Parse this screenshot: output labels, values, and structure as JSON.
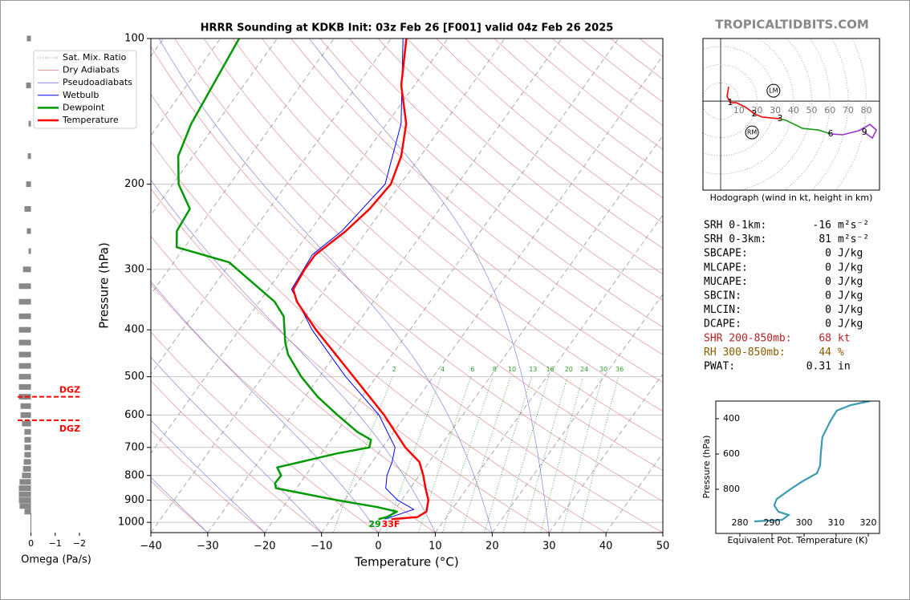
{
  "watermark": "TROPICALTIDBITS.COM",
  "chart_data": [
    {
      "type": "skewt",
      "title": "HRRR Sounding at KDKB Init: 03z Feb 26 [F001] valid 04z Feb 26 2025",
      "xlabel": "Temperature (°C)",
      "ylabel": "Pressure (hPa)",
      "xlim": [
        -40,
        50
      ],
      "ylim": [
        1050,
        100
      ],
      "log_y": true,
      "grid": true,
      "xticks": [
        {
          "value": -40,
          "label": "−40"
        },
        {
          "value": -30,
          "label": "−30"
        },
        {
          "value": -20,
          "label": "−20"
        },
        {
          "value": -10,
          "label": "−10"
        },
        0,
        10,
        20,
        30,
        40,
        50
      ],
      "yticks": [
        100,
        200,
        300,
        400,
        500,
        600,
        700,
        800,
        900,
        1000
      ],
      "reference_lines": [
        {
          "name": "Sat. Mix. Ratio",
          "color": "#2ca02c",
          "style": "dotted"
        },
        {
          "name": "Dry Adiabats",
          "color": "#e08080",
          "style": "solid"
        },
        {
          "name": "Pseudoadiabats",
          "color": "#7070e0",
          "style": "solid"
        }
      ],
      "mixing_ratio_labels": [
        2,
        4,
        6,
        8,
        10,
        13,
        16,
        20,
        24,
        30,
        36
      ],
      "series": [
        {
          "name": "Wetbulb",
          "color": "#0000ff",
          "width": 1,
          "pressure": [
            100,
            150,
            200,
            250,
            280,
            330,
            400,
            500,
            600,
            700,
            750,
            800,
            850,
            900,
            940,
            985
          ],
          "values": [
            -57.9,
            -47.5,
            -42.7,
            -44.4,
            -46.6,
            -45.9,
            -37.2,
            -25.4,
            -14.7,
            -7.8,
            -6.5,
            -5.7,
            -4.3,
            -0.7,
            3.3,
            -0.6
          ]
        },
        {
          "name": "Dewpoint",
          "color": "#009900",
          "width": 2.5,
          "pressure": [
            100,
            150,
            175,
            200,
            225,
            250,
            270,
            290,
            350,
            375,
            425,
            450,
            500,
            550,
            600,
            650,
            675,
            700,
            720,
            770,
            800,
            830,
            850,
            900,
            930,
            950,
            975,
            985
          ],
          "values": [
            -86.7,
            -84.4,
            -82.6,
            -79,
            -73.9,
            -73.4,
            -71.4,
            -60.3,
            -47.3,
            -43.9,
            -40.3,
            -38.3,
            -33.2,
            -27.8,
            -22,
            -16.4,
            -13,
            -12.3,
            -17.2,
            -26,
            -24.3,
            -24.4,
            -23.6,
            -11.3,
            -3.4,
            0.6,
            -0.5,
            -1.7
          ]
        },
        {
          "name": "Temperature",
          "color": "#ff0000",
          "width": 2.5,
          "pressure": [
            100,
            125,
            150,
            175,
            200,
            225,
            250,
            280,
            300,
            330,
            350,
            400,
            500,
            600,
            700,
            750,
            800,
            850,
            900,
            950,
            975,
            985
          ],
          "values": [
            -57.3,
            -52.3,
            -46.6,
            -43.4,
            -41.7,
            -42.3,
            -43.7,
            -46.1,
            -46.1,
            -45.6,
            -43.4,
            -36.5,
            -24,
            -13.8,
            -6,
            -1.7,
            0.7,
            2.7,
            4.7,
            5.8,
            4.9,
            0.6
          ]
        }
      ],
      "surface_labels": {
        "dewpoint": "29",
        "temperature": "33F"
      }
    },
    {
      "type": "omega",
      "xlabel": "Omega (Pa/s)",
      "xlim": [
        0.55,
        -2.3
      ],
      "ylim": [
        1050,
        100
      ],
      "color": "#888888",
      "xticks": [
        0,
        {
          "value": -1,
          "label": "−1"
        },
        {
          "value": -2,
          "label": "−2"
        }
      ],
      "pressure": [
        100,
        125,
        150,
        175,
        200,
        225,
        250,
        275,
        300,
        325,
        350,
        375,
        400,
        425,
        450,
        475,
        500,
        525,
        550,
        575,
        600,
        625,
        650,
        675,
        700,
        725,
        750,
        775,
        800,
        825,
        850,
        875,
        900,
        925,
        950
      ],
      "values": [
        0.17,
        0.2,
        0.1,
        0.13,
        0.2,
        0.27,
        0.17,
        0.1,
        0.33,
        0.5,
        0.5,
        0.5,
        0.5,
        0.5,
        0.5,
        0.5,
        0.5,
        0.5,
        0.5,
        0.43,
        0.43,
        0.37,
        0.27,
        0.27,
        0.27,
        0.27,
        0.3,
        0.33,
        0.37,
        0.47,
        0.5,
        0.5,
        0.5,
        0.47,
        0.27
      ],
      "dgz": {
        "label": "DGZ",
        "color": "#ff0000",
        "pressure": [
          550,
          615
        ]
      }
    },
    {
      "type": "hodograph",
      "xlabel": "Hodograph (wind in kt, height in km)",
      "xlim": [
        -9.7,
        87.2
      ],
      "ylim": [
        -48.9,
        34.4
      ],
      "rings": [
        10,
        20,
        30,
        40,
        50,
        60,
        70,
        80
      ],
      "segments": [
        {
          "color": "#ff0000",
          "u": [
            4.4,
            3.5,
            5.3,
            8.8,
            14,
            18.5,
            22.9,
            32.6
          ],
          "v": [
            7.9,
            2.6,
            -0.9,
            -0.9,
            -3.5,
            -7,
            -8.8,
            -9.7
          ],
          "km": [
            null,
            null,
            1,
            null,
            null,
            2,
            null,
            3
          ]
        },
        {
          "color": "#1a9a1a",
          "u": [
            32.6,
            36,
            45,
            53.7,
            60.4
          ],
          "v": [
            -9.7,
            -10.6,
            -15,
            -15.9,
            -18
          ],
          "km": [
            null,
            null,
            null,
            null,
            6
          ]
        },
        {
          "color": "#9932cc",
          "u": [
            60.4,
            67,
            75.8,
            82,
            85.5,
            83.3,
            78.9
          ],
          "v": [
            -18,
            -18.5,
            -16.3,
            -12.8,
            -15.9,
            -20.3,
            -17.2
          ],
          "km": [
            null,
            null,
            null,
            null,
            null,
            null,
            9
          ]
        }
      ],
      "storm_motions": [
        {
          "label": "LM",
          "u": 29,
          "v": 5.7
        },
        {
          "label": "RM",
          "u": 17.2,
          "v": -17.2
        }
      ]
    },
    {
      "type": "theta_e",
      "xlabel": "Equivalent Pot. Temperature (K)",
      "ylabel": "Pressure (hPa)",
      "color": "#3a9ab0",
      "xlim": [
        272.5,
        323.5
      ],
      "ylim": [
        1050,
        300
      ],
      "xticks": [
        280,
        290,
        300,
        310,
        320
      ],
      "yticks": [
        400,
        600,
        800
      ],
      "pressure": [
        300,
        323,
        354,
        413,
        504,
        600,
        664,
        709,
        755,
        800,
        855,
        891,
        927,
        945,
        973,
        982
      ],
      "values": [
        320.5,
        314.5,
        310.2,
        308.2,
        305.7,
        305.2,
        305,
        304,
        299.5,
        295.7,
        291.5,
        290.7,
        292,
        295.2,
        293.2,
        284.5
      ]
    }
  ],
  "stats": [
    {
      "label": "SRH 0-1km:",
      "value": -16,
      "unit": "m²s⁻²",
      "color": "#000000"
    },
    {
      "label": "SRH 0-3km:",
      "value": 81,
      "unit": "m²s⁻²",
      "color": "#000000"
    },
    {
      "label": "SBCAPE:",
      "value": 0,
      "unit": "J/kg",
      "color": "#000000"
    },
    {
      "label": "MLCAPE:",
      "value": 0,
      "unit": "J/kg",
      "color": "#000000"
    },
    {
      "label": "MUCAPE:",
      "value": 0,
      "unit": "J/kg",
      "color": "#000000"
    },
    {
      "label": "SBCIN:",
      "value": 0,
      "unit": "J/kg",
      "color": "#000000"
    },
    {
      "label": "MLCIN:",
      "value": 0,
      "unit": "J/kg",
      "color": "#000000"
    },
    {
      "label": "DCAPE:",
      "value": 0,
      "unit": "J/kg",
      "color": "#000000"
    },
    {
      "label": "SHR 200-850mb:",
      "value": 68,
      "unit": "kt",
      "color": "#b22222"
    },
    {
      "label": "RH 300-850mb:",
      "value": 44,
      "unit": "%",
      "color": "#8b5a00"
    },
    {
      "label": "PWAT:",
      "value": 0.31,
      "unit": "in",
      "color": "#000000"
    }
  ]
}
